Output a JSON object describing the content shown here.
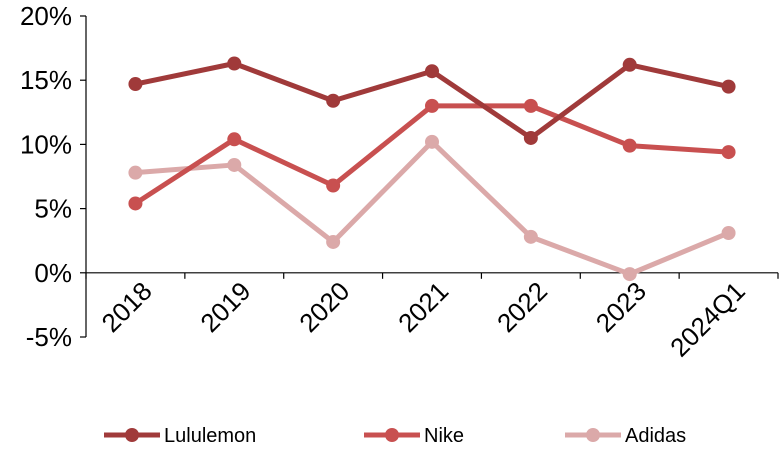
{
  "chart_data": {
    "type": "line",
    "categories": [
      "2018",
      "2019",
      "2020",
      "2021",
      "2022",
      "2023",
      "2024Q1"
    ],
    "series": [
      {
        "name": "Lululemon",
        "color": "#a03a3a",
        "values": [
          14.7,
          16.3,
          13.4,
          15.7,
          10.5,
          16.2,
          14.5
        ]
      },
      {
        "name": "Nike",
        "color": "#c85050",
        "values": [
          5.4,
          10.4,
          6.8,
          13.0,
          13.0,
          9.9,
          9.4
        ]
      },
      {
        "name": "Adidas",
        "color": "#dba9a9",
        "values": [
          7.8,
          8.4,
          2.4,
          10.2,
          2.8,
          -0.1,
          3.1
        ]
      }
    ],
    "yticks": [
      "-5%",
      "0%",
      "5%",
      "10%",
      "15%",
      "20%"
    ],
    "ylim": [
      -5,
      20
    ],
    "legend_position": "bottom",
    "grid": false
  }
}
